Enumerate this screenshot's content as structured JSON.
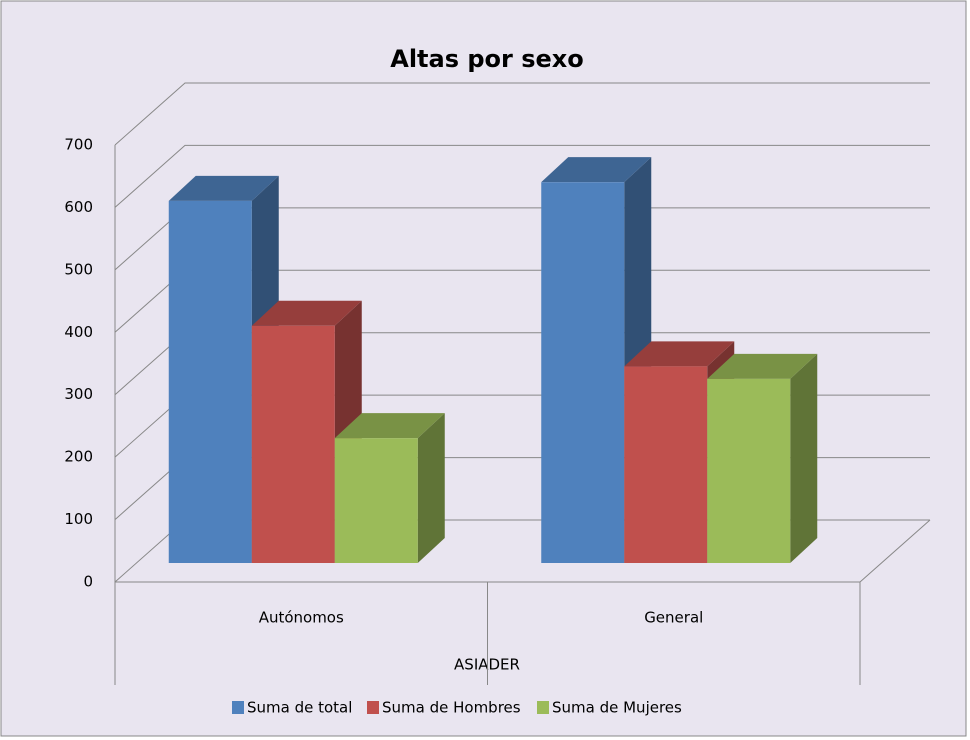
{
  "chart_data": {
    "type": "bar3d",
    "title": "Altas por sexo",
    "categories": [
      "Autónomos",
      "General"
    ],
    "x_label": "ASIADER",
    "series": [
      {
        "name": "Suma de total",
        "color": "#4f81bd",
        "values": [
          580,
          610
        ]
      },
      {
        "name": "Suma de Hombres",
        "color": "#c0504d",
        "values": [
          380,
          315
        ]
      },
      {
        "name": "Suma de Mujeres",
        "color": "#9bbb59",
        "values": [
          200,
          295
        ]
      }
    ],
    "ylim": [
      0,
      700
    ],
    "yticks": [
      0,
      100,
      200,
      300,
      400,
      500,
      600,
      700
    ],
    "grid": true,
    "legend": "bottom"
  }
}
